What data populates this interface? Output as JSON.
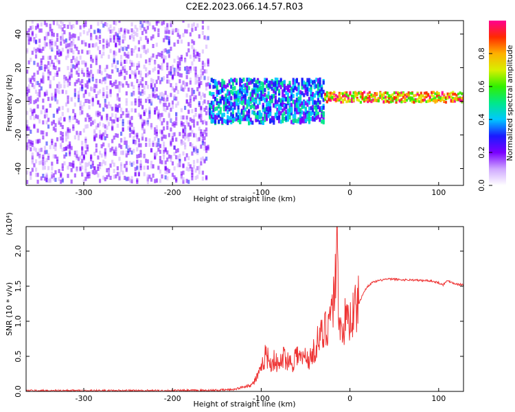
{
  "title": "C2E2.2023.066.14.57.R03",
  "chart_data": [
    {
      "type": "heatmap",
      "xlabel": "Height of straight line (km)",
      "ylabel": "Frequency (Hz)",
      "xlim": [
        -365,
        128
      ],
      "ylim": [
        -50,
        48
      ],
      "xticks": [
        -300,
        -200,
        -100,
        0,
        100
      ],
      "xticklabels": [
        "-300",
        "-200",
        "-100",
        "0",
        "100"
      ],
      "yticks": [
        -40,
        -20,
        0,
        20,
        40
      ],
      "yticklabels": [
        "-40",
        "-20",
        "0",
        "20",
        "40"
      ],
      "colorbar": {
        "label": "Normalized spectral amplitude",
        "range": [
          0,
          1
        ],
        "ticks": [
          0.0,
          0.2,
          0.4,
          0.6,
          0.8
        ],
        "ticklabels": [
          "0.0",
          "0.2",
          "0.4",
          "0.6",
          "0.8"
        ],
        "colormap": [
          "#ffffff",
          "#cfa8ff",
          "#7a00ff",
          "#1a1aff",
          "#00c8ff",
          "#00e88a",
          "#30f000",
          "#d8f000",
          "#ffb000",
          "#ff2a00",
          "#ff0090"
        ]
      },
      "regions": [
        {
          "x": [
            -365,
            -160
          ],
          "freq_spread": 48,
          "amplitude": "low, scattered noise"
        },
        {
          "x": [
            -160,
            -30
          ],
          "freq_spread": 13,
          "amplitude": "medium, dense cluster"
        },
        {
          "x": [
            -30,
            128
          ],
          "freq_center": 2,
          "freq_spread": 3,
          "amplitude": "high, narrow band"
        }
      ]
    },
    {
      "type": "line",
      "xlabel": "Height of straight line (km)",
      "ylabel": "SNR (10 * v/v)",
      "y_multiplier": "(x10⁴)",
      "xlim": [
        -365,
        128
      ],
      "ylim": [
        0,
        2.35
      ],
      "xticks": [
        -300,
        -200,
        -100,
        0,
        100
      ],
      "xticklabels": [
        "-300",
        "-200",
        "-100",
        "0",
        "100"
      ],
      "yticks": [
        0.0,
        0.5,
        1.0,
        1.5,
        2.0
      ],
      "yticklabels": [
        "0.0",
        "0.5",
        "1.0",
        "1.5",
        "2.0"
      ],
      "color": "#ee3333",
      "series": [
        {
          "x": [
            -365,
            -300,
            -200,
            -150,
            -130,
            -110,
            -100,
            -95,
            -90,
            -85,
            -80,
            -75,
            -70,
            -65,
            -60,
            -55,
            -50,
            -45,
            -40,
            -35,
            -30,
            -25,
            -20,
            -18,
            -16,
            -15,
            -14,
            -12,
            -10,
            -8,
            -5,
            0,
            5,
            10,
            15,
            20,
            25,
            30,
            40,
            50,
            60,
            70,
            80,
            90,
            100,
            105,
            110,
            120,
            128
          ],
          "values": [
            0.01,
            0.01,
            0.01,
            0.015,
            0.03,
            0.1,
            0.3,
            0.55,
            0.4,
            0.45,
            0.35,
            0.5,
            0.45,
            0.4,
            0.55,
            0.45,
            0.5,
            0.45,
            0.6,
            0.75,
            0.8,
            1.0,
            1.2,
            1.35,
            1.8,
            2.35,
            1.7,
            1.1,
            0.85,
            0.95,
            1.0,
            1.05,
            1.15,
            1.25,
            1.4,
            1.5,
            1.55,
            1.57,
            1.6,
            1.6,
            1.59,
            1.59,
            1.58,
            1.58,
            1.55,
            1.52,
            1.58,
            1.53,
            1.52
          ]
        }
      ]
    }
  ]
}
